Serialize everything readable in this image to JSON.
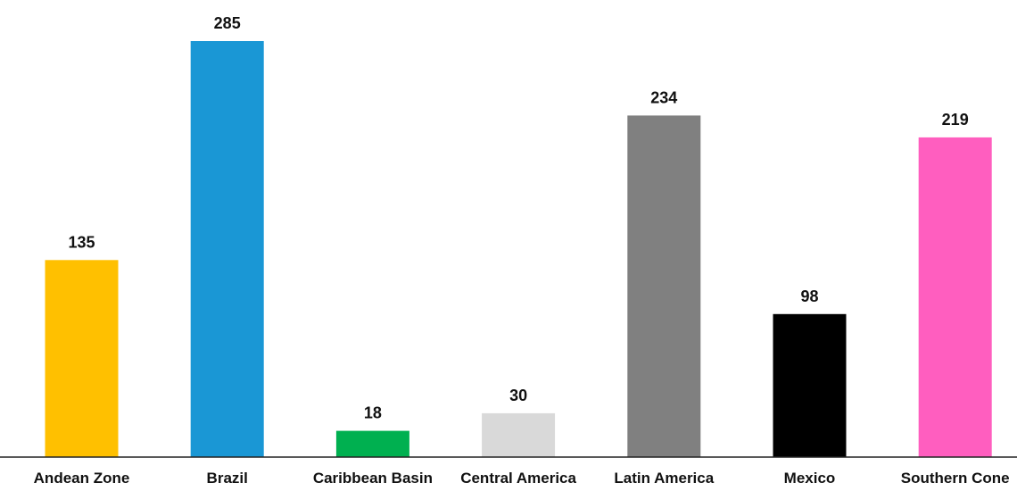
{
  "chart_data": {
    "type": "bar",
    "title": "",
    "xlabel": "",
    "ylabel": "",
    "categories": [
      "Andean Zone",
      "Brazil",
      "Caribbean Basin",
      "Central America",
      "Latin America",
      "Mexico",
      "Southern Cone"
    ],
    "values": [
      135,
      285,
      18,
      30,
      234,
      98,
      219
    ],
    "colors": [
      "#FFC000",
      "#1A97D5",
      "#00B050",
      "#D9D9D9",
      "#808080",
      "#000000",
      "#FF5EBF"
    ],
    "ylim": [
      0,
      285
    ],
    "grid": false,
    "legend": "none",
    "data_labels": true
  }
}
